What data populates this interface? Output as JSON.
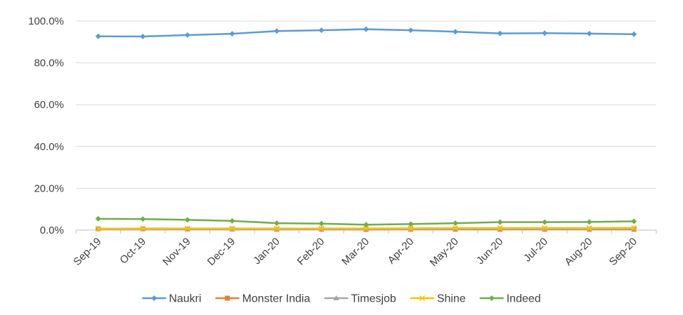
{
  "chart_data": {
    "type": "line",
    "title": "",
    "xlabel": "",
    "ylabel": "",
    "categories": [
      "Sep-19",
      "Oct-19",
      "Nov-19",
      "Dec-19",
      "Jan-20",
      "Feb-20",
      "Mar-20",
      "Apr-20",
      "May-20",
      "Jun-20",
      "Jul-20",
      "Aug-20",
      "Sep-20"
    ],
    "ylim": [
      0,
      100
    ],
    "yticks": [
      "0.0%",
      "20.0%",
      "40.0%",
      "60.0%",
      "80.0%",
      "100.0%"
    ],
    "grid": true,
    "legend_position": "bottom",
    "series": [
      {
        "name": "Naukri",
        "color": "#5b9bd5",
        "marker": "diamond",
        "values": [
          92.7,
          92.6,
          93.3,
          93.9,
          95.2,
          95.6,
          96.1,
          95.6,
          94.9,
          94.1,
          94.2,
          94.0,
          93.7
        ]
      },
      {
        "name": "Monster India",
        "color": "#ed7d31",
        "marker": "square",
        "values": [
          0.6,
          0.6,
          0.5,
          0.5,
          0.4,
          0.4,
          0.3,
          0.4,
          0.4,
          0.4,
          0.4,
          0.4,
          0.4
        ]
      },
      {
        "name": "Timesjob",
        "color": "#a5a5a5",
        "marker": "triangle",
        "values": [
          0.5,
          0.5,
          0.5,
          0.4,
          0.4,
          0.4,
          0.4,
          0.5,
          0.5,
          0.6,
          0.6,
          0.6,
          0.7
        ]
      },
      {
        "name": "Shine",
        "color": "#ffc000",
        "marker": "x",
        "values": [
          0.7,
          0.8,
          0.8,
          0.8,
          0.8,
          0.8,
          0.8,
          0.9,
          1.0,
          1.0,
          1.0,
          1.0,
          1.1
        ]
      },
      {
        "name": "Indeed",
        "color": "#70ad47",
        "marker": "diamond",
        "values": [
          5.4,
          5.3,
          4.9,
          4.4,
          3.3,
          3.1,
          2.6,
          2.9,
          3.3,
          3.8,
          3.8,
          3.9,
          4.2
        ]
      }
    ]
  }
}
